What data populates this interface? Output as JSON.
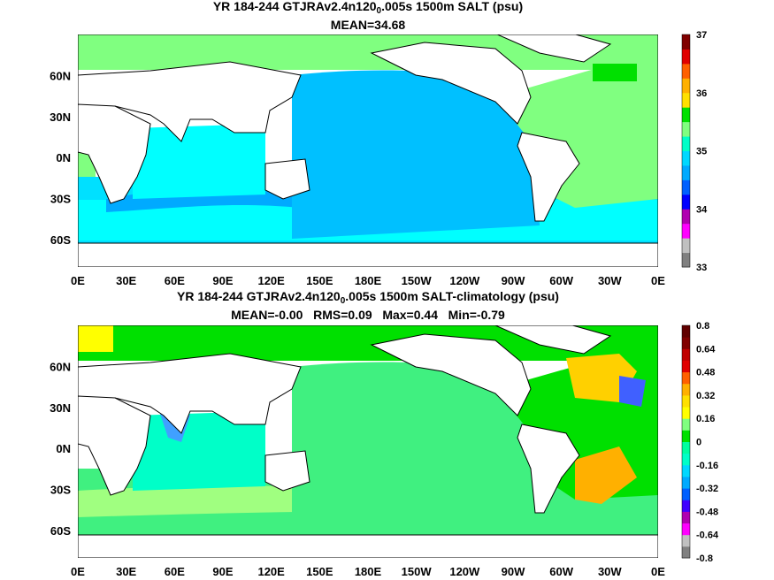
{
  "panels": [
    {
      "title_prefix": "YR 184-244 GTJRAv2.4n120",
      "title_sub": "0",
      "title_suffix": ".005s 1500m SALT (psu)",
      "stats": "MEAN=34.68",
      "colorbar": {
        "labels": [
          "37",
          "36",
          "35",
          "34",
          "33"
        ],
        "colors": [
          "#808080",
          "#c0c0c0",
          "#ff00ff",
          "#b000b0",
          "#0000ff",
          "#0060ff",
          "#00aaff",
          "#00d8ff",
          "#00ffc8",
          "#80ff80",
          "#00e000",
          "#ffe000",
          "#ffb000",
          "#ff6000",
          "#e00000",
          "#800000"
        ]
      }
    },
    {
      "title_prefix": "YR 184-244 GTJRAv2.4n120",
      "title_sub": "0",
      "title_suffix": ".005s 1500m SALT-climatology (psu)",
      "stats": "MEAN=-0.00   RMS=0.09   Max=0.44   Min=-0.79",
      "colorbar": {
        "labels": [
          "0.8",
          "0.64",
          "0.48",
          "0.32",
          "0.16",
          "0",
          "-0.16",
          "-0.32",
          "-0.48",
          "-0.64",
          "-0.8"
        ],
        "colors": [
          "#808080",
          "#c0c0c0",
          "#ff00ff",
          "#b000b0",
          "#4000ff",
          "#0060ff",
          "#00aaff",
          "#00d8ff",
          "#00ffc8",
          "#00ffa0",
          "#00e000",
          "#80ff80",
          "#ffff00",
          "#ffe000",
          "#ffb000",
          "#ff6000",
          "#e00000",
          "#c00000",
          "#800000",
          "#600000"
        ]
      }
    }
  ],
  "axes": {
    "x_labels": [
      "0E",
      "30E",
      "60E",
      "90E",
      "120E",
      "150E",
      "180E",
      "150W",
      "120W",
      "90W",
      "60W",
      "30W",
      "0E"
    ],
    "y_labels": [
      "60N",
      "30N",
      "0N",
      "30S",
      "60S"
    ]
  },
  "colors": {
    "land": "#ffffff",
    "coast": "#000000",
    "panel1_pacific": "#00c0ff",
    "panel1_indian": "#00ffff",
    "panel1_southern": "#00e0ff",
    "panel1_atlantic": "#80ff80",
    "panel1_arctic": "#80ff80",
    "panel2_ocean": "#40f080",
    "panel2_light": "#a0ff80",
    "panel2_yellow": "#ffd000",
    "panel2_blue": "#4090ff"
  }
}
